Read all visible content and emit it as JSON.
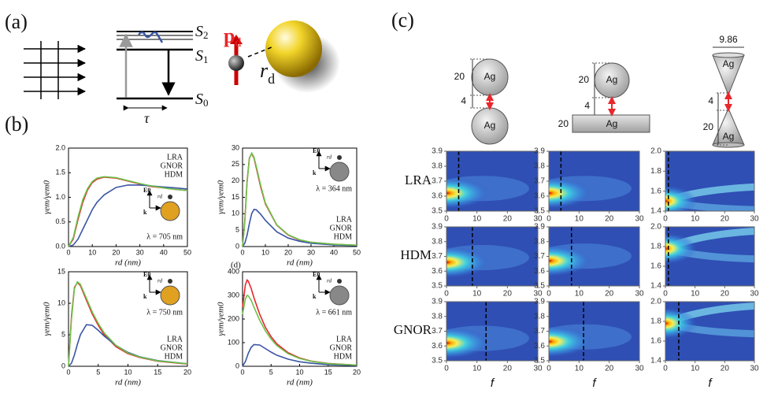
{
  "panel_labels": {
    "a": "(a)",
    "b": "(b)",
    "c": "(c)"
  },
  "diagram_a": {
    "levels": [
      {
        "symbol": "S",
        "sub": "2"
      },
      {
        "symbol": "S",
        "sub": "1"
      },
      {
        "symbol": "S",
        "sub": "0"
      }
    ],
    "lifetime": "τ",
    "dipole": {
      "symbol": "p",
      "sub": "d"
    },
    "distance": {
      "symbol": "r",
      "sub": "d"
    }
  },
  "geometry_c": [
    {
      "size": "20",
      "gap": "4",
      "material_top": "Ag",
      "material_bottom": "Ag"
    },
    {
      "size": "20",
      "gap": "4",
      "plate": "20",
      "material_top": "Ag",
      "material_bottom": "Ag"
    },
    {
      "width": "9.86",
      "gap": "4",
      "size": "20",
      "material_top": "Ag",
      "material_bottom": "Ag"
    }
  ],
  "row_labels": [
    {
      "name": "LRA",
      "color": "#e8262b"
    },
    {
      "name": "HDM",
      "color": "#6cc24a"
    },
    {
      "name": "GNOR",
      "color": "#3a55a4"
    }
  ],
  "chart_data": [
    {
      "type": "line",
      "xlabel": "rd (nm)",
      "ylabel": "γem/γem0",
      "legend": "upper right",
      "annotation": "λ = 705 nm",
      "inset_color": "#e0a020",
      "inset_labels": {
        "field": "E0",
        "wave": "k",
        "distance": "rd"
      },
      "xlim": [
        0,
        50
      ],
      "ylim": [
        0,
        2
      ],
      "xticks": [
        0,
        10,
        20,
        30,
        40,
        50
      ],
      "yticks": [
        {
          "value": 0,
          "label": "0.0"
        },
        0.5,
        {
          "value": 1,
          "label": "1.0"
        },
        1.5,
        {
          "value": 2,
          "label": "2.0"
        }
      ],
      "x": [
        0,
        2,
        4,
        6,
        8,
        10,
        12,
        15,
        20,
        25,
        30,
        35,
        40,
        45,
        50
      ],
      "series": [
        {
          "name": "LRA",
          "color": "#e8262b",
          "values": [
            0,
            0.15,
            0.55,
            0.9,
            1.15,
            1.3,
            1.37,
            1.41,
            1.39,
            1.33,
            1.27,
            1.22,
            1.19,
            1.16,
            1.14
          ]
        },
        {
          "name": "GNOR",
          "color": "#3a55a4",
          "values": [
            0,
            0.03,
            0.15,
            0.35,
            0.55,
            0.75,
            0.9,
            1.05,
            1.2,
            1.25,
            1.25,
            1.23,
            1.21,
            1.19,
            1.17
          ]
        },
        {
          "name": "HDM",
          "color": "#6cc24a",
          "values": [
            0,
            0.18,
            0.6,
            0.95,
            1.18,
            1.32,
            1.39,
            1.42,
            1.4,
            1.34,
            1.28,
            1.23,
            1.19,
            1.16,
            1.14
          ]
        }
      ]
    },
    {
      "type": "line",
      "xlabel": "rd (nm)",
      "ylabel": "γem/γem0",
      "legend": "lower right",
      "annotation": "λ = 364 nm",
      "inset_color": "#888888",
      "inset_labels": {
        "field": "E0",
        "wave": "k",
        "distance": "rd"
      },
      "xlim": [
        0,
        50
      ],
      "ylim": [
        0,
        30
      ],
      "xticks": [
        0,
        10,
        20,
        30,
        40,
        50
      ],
      "yticks": [
        0,
        5,
        10,
        15,
        20,
        25,
        30
      ],
      "x": [
        0,
        1,
        2,
        3,
        4,
        5,
        6,
        8,
        10,
        15,
        20,
        25,
        30,
        40,
        50
      ],
      "series": [
        {
          "name": "LRA",
          "color": "#e8262b",
          "values": [
            0,
            8,
            20,
            27,
            28.3,
            27,
            24,
            18,
            13,
            6.5,
            3.5,
            2,
            1.3,
            0.7,
            0.4
          ]
        },
        {
          "name": "GNOR",
          "color": "#3a55a4",
          "values": [
            0,
            1,
            3.5,
            7,
            10,
            11.3,
            11.2,
            9.8,
            8,
            4.5,
            2.6,
            1.6,
            1,
            0.5,
            0.3
          ]
        },
        {
          "name": "HDM",
          "color": "#6cc24a",
          "values": [
            0,
            7.5,
            19.5,
            26.8,
            28.5,
            27.3,
            24.5,
            18.5,
            13.3,
            6.6,
            3.6,
            2.1,
            1.3,
            0.7,
            0.4
          ]
        }
      ]
    },
    {
      "type": "line",
      "xlabel": "rd (nm)",
      "ylabel": "γem/γem0",
      "legend": "lower right",
      "annotation": "λ = 750 nm",
      "inset_color": "#e0a020",
      "inset_labels": {
        "field": "E0",
        "wave": "k",
        "distance": "rd"
      },
      "xlim": [
        0,
        20
      ],
      "ylim": [
        0,
        15
      ],
      "xticks": [
        0,
        5,
        10,
        15,
        20
      ],
      "yticks": [
        0,
        5,
        10,
        15
      ],
      "x": [
        0,
        0.5,
        1,
        1.5,
        2,
        3,
        4,
        5,
        6,
        8,
        10,
        12,
        15,
        20
      ],
      "series": [
        {
          "name": "LRA",
          "color": "#e8262b",
          "values": [
            0,
            8,
            12.5,
            13.3,
            12.8,
            10.5,
            8.3,
            6.5,
            5,
            3.1,
            2,
            1.4,
            0.8,
            0.35
          ]
        },
        {
          "name": "GNOR",
          "color": "#3a55a4",
          "values": [
            0,
            0.5,
            1.8,
            3.5,
            5,
            6.6,
            6.5,
            5.7,
            4.8,
            3.3,
            2.2,
            1.5,
            0.9,
            0.4
          ]
        },
        {
          "name": "HDM",
          "color": "#6cc24a",
          "values": [
            0,
            7.5,
            12.3,
            13.4,
            13,
            10.8,
            8.6,
            6.8,
            5.3,
            3.3,
            2.1,
            1.45,
            0.85,
            0.4
          ]
        }
      ]
    },
    {
      "type": "line",
      "panel_label": "(d)",
      "xlabel": "rd (nm)",
      "ylabel": "γem/γem0",
      "legend": "lower right",
      "annotation": "λ = 661 nm",
      "inset_color": "#888888",
      "inset_labels": {
        "field": "E0",
        "wave": "k",
        "distance": "rd"
      },
      "xlim": [
        0,
        20
      ],
      "ylim": [
        0,
        400
      ],
      "xticks": [
        0,
        5,
        10,
        15,
        20
      ],
      "yticks": [
        0,
        100,
        200,
        300,
        400
      ],
      "x": [
        0,
        0.5,
        0.8,
        1,
        1.5,
        2,
        3,
        4,
        5,
        6,
        8,
        10,
        12,
        15,
        20
      ],
      "series": [
        {
          "name": "LRA",
          "color": "#e8262b",
          "values": [
            250,
            345,
            365,
            360,
            330,
            290,
            220,
            165,
            125,
            95,
            57,
            35,
            22,
            12,
            5
          ]
        },
        {
          "name": "GNOR",
          "color": "#3a55a4",
          "values": [
            0,
            20,
            40,
            55,
            80,
            92,
            90,
            75,
            60,
            47,
            30,
            19,
            13,
            7,
            3
          ]
        },
        {
          "name": "HDM",
          "color": "#6cc24a",
          "values": [
            220,
            285,
            300,
            298,
            280,
            250,
            195,
            150,
            115,
            88,
            53,
            33,
            21,
            11,
            5
          ]
        }
      ]
    },
    {
      "type": "heatmap",
      "xlim": [
        0,
        30
      ],
      "ylim": [
        3.5,
        3.9
      ],
      "xticks": [
        0,
        10,
        20,
        30
      ],
      "yticks": [
        3.5,
        3.6,
        3.7,
        3.8,
        3.9
      ],
      "marker_x": 4,
      "peak": [
        0,
        3.62
      ]
    },
    {
      "type": "heatmap",
      "xlim": [
        0,
        30
      ],
      "ylim": [
        3.5,
        3.9
      ],
      "xticks": [
        0,
        10,
        20,
        30
      ],
      "yticks": [
        3.5,
        3.6,
        3.7,
        3.8,
        3.9
      ],
      "marker_x": 4,
      "peak": [
        0,
        3.62
      ]
    },
    {
      "type": "heatmap",
      "xlim": [
        0,
        30
      ],
      "ylim": [
        1.4,
        2
      ],
      "xticks": [
        0,
        10,
        20,
        30
      ],
      "yticks": [
        1.4,
        1.6,
        1.8,
        {
          "value": 2,
          "label": "2.0"
        }
      ],
      "marker_x": 1,
      "peak": [
        0,
        1.5
      ]
    },
    {
      "type": "heatmap",
      "xlim": [
        0,
        30
      ],
      "ylim": [
        3.5,
        3.9
      ],
      "xticks": [
        0,
        10,
        20,
        30
      ],
      "yticks": [
        3.5,
        3.6,
        3.7,
        3.8,
        3.9
      ],
      "marker_x": 8.5,
      "peak": [
        0,
        3.66
      ]
    },
    {
      "type": "heatmap",
      "xlim": [
        0,
        30
      ],
      "ylim": [
        3.5,
        3.9
      ],
      "xticks": [
        0,
        10,
        20,
        30
      ],
      "yticks": [
        3.5,
        3.6,
        3.7,
        3.8,
        3.9
      ],
      "marker_x": 7.5,
      "peak": [
        0,
        3.67
      ]
    },
    {
      "type": "heatmap",
      "xlim": [
        0,
        30
      ],
      "ylim": [
        1.4,
        2
      ],
      "xticks": [
        0,
        10,
        20,
        30
      ],
      "yticks": [
        1.4,
        1.6,
        1.8,
        {
          "value": 2,
          "label": "2.0"
        }
      ],
      "marker_x": 1,
      "peak": [
        0,
        1.78
      ]
    },
    {
      "type": "heatmap",
      "xlabel": "f",
      "xlim": [
        0,
        30
      ],
      "ylim": [
        3.5,
        3.9
      ],
      "xticks": [
        0,
        10,
        20,
        30
      ],
      "yticks": [
        3.5,
        3.6,
        3.7,
        3.8,
        3.9
      ],
      "marker_x": 13,
      "peak": [
        0,
        3.62
      ]
    },
    {
      "type": "heatmap",
      "xlabel": "f",
      "xlim": [
        0,
        30
      ],
      "ylim": [
        3.5,
        3.9
      ],
      "xticks": [
        0,
        10,
        20,
        30
      ],
      "yticks": [
        3.5,
        3.6,
        3.7,
        3.8,
        3.9
      ],
      "marker_x": 11.5,
      "peak": [
        0,
        3.63
      ]
    },
    {
      "type": "heatmap",
      "xlabel": "f",
      "xlim": [
        0,
        30
      ],
      "ylim": [
        1.4,
        2
      ],
      "xticks": [
        0,
        10,
        20,
        30
      ],
      "yticks": [
        1.4,
        1.6,
        1.8,
        {
          "value": 2,
          "label": "2.0"
        }
      ],
      "marker_x": 4.5,
      "peak": [
        0,
        1.78
      ]
    }
  ]
}
